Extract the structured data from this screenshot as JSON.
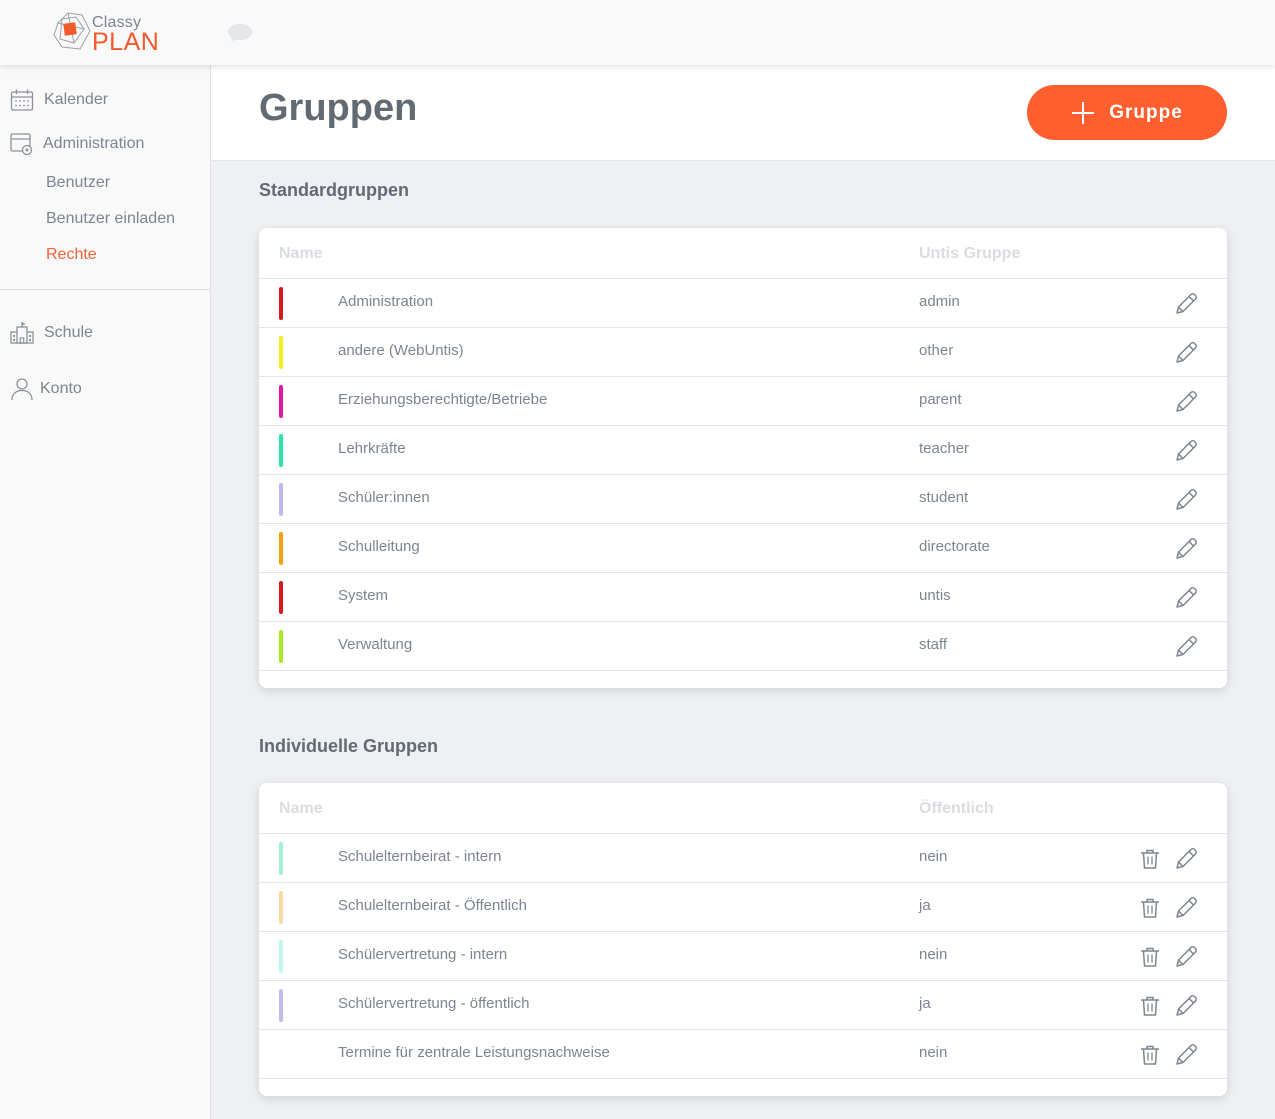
{
  "logo": {
    "line1": "Classy",
    "line2": "PLAN"
  },
  "sidebar": {
    "kalender": "Kalender",
    "administration": "Administration",
    "sub": [
      "Benutzer",
      "Benutzer einladen",
      "Rechte"
    ],
    "schule": "Schule",
    "konto": "Konto"
  },
  "page": {
    "title": "Gruppen",
    "add_button": "Gruppe"
  },
  "standard": {
    "title": "Standardgruppen",
    "col_name": "Name",
    "col_value": "Untis Gruppe",
    "rows": [
      {
        "name": "Administration",
        "value": "admin",
        "color": "#d9181f"
      },
      {
        "name": "andere (WebUntis)",
        "value": "other",
        "color": "#f5ef1d"
      },
      {
        "name": "Erziehungsberechtigte/Betriebe",
        "value": "parent",
        "color": "#e018a8"
      },
      {
        "name": "Lehrkräfte",
        "value": "teacher",
        "color": "#2ae3a7"
      },
      {
        "name": "Schüler:innen",
        "value": "student",
        "color": "#c2b8ef"
      },
      {
        "name": "Schulleitung",
        "value": "directorate",
        "color": "#f5a00c"
      },
      {
        "name": "System",
        "value": "untis",
        "color": "#d9181f"
      },
      {
        "name": "Verwaltung",
        "value": "staff",
        "color": "#a6ea22"
      }
    ]
  },
  "individual": {
    "title": "Individuelle Gruppen",
    "col_name": "Name",
    "col_value": "Öffentlich",
    "rows": [
      {
        "name": "Schulelternbeirat - intern",
        "value": "nein",
        "color": "#a4f0d4"
      },
      {
        "name": "Schulelternbeirat - Öffentlich",
        "value": "ja",
        "color": "#fbd9a0"
      },
      {
        "name": "Schülervertretung - intern",
        "value": "nein",
        "color": "#c2f5f0"
      },
      {
        "name": "Schülervertretung - öffentlich",
        "value": "ja",
        "color": "#c3bcf0"
      },
      {
        "name": "Termine für zentrale Leistungsnachweise",
        "value": "nein",
        "color": ""
      }
    ]
  }
}
